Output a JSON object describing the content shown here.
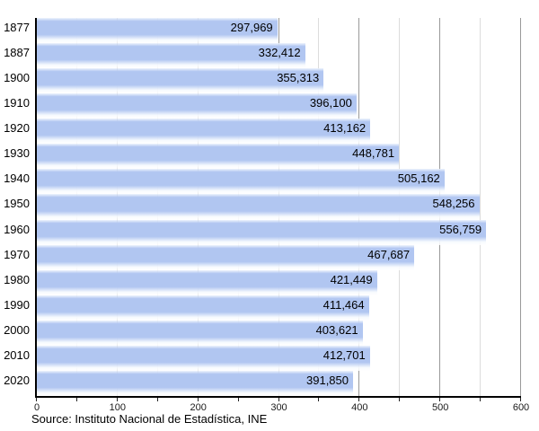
{
  "chart_data": {
    "type": "bar",
    "orientation": "horizontal",
    "title": "",
    "xlabel": "",
    "ylabel": "",
    "categories": [
      "1877",
      "1887",
      "1900",
      "1910",
      "1920",
      "1930",
      "1940",
      "1950",
      "1960",
      "1970",
      "1980",
      "1990",
      "2000",
      "2010",
      "2020"
    ],
    "values": [
      297969,
      332412,
      355313,
      396100,
      413162,
      448781,
      505162,
      548256,
      556759,
      467687,
      421449,
      411464,
      403621,
      412701,
      391850
    ],
    "value_labels": [
      "297,969",
      "332,412",
      "355,313",
      "396,100",
      "413,162",
      "448,781",
      "505,162",
      "548,256",
      "556,759",
      "467,687",
      "421,449",
      "411,464",
      "403,621",
      "412,701",
      "391,850"
    ],
    "xlim": [
      0,
      600
    ],
    "x_unit_divisor": 1000,
    "x_tick_labels": [
      "0",
      "100",
      "200",
      "300",
      "400",
      "500",
      "600"
    ],
    "x_major_tick_step": 100,
    "x_minor_tick_step": 50,
    "grid": true,
    "legend": false,
    "source": "Source: Instituto Nacional de Estadística, INE",
    "colors": {
      "bar": "#b1c6f1",
      "grid_major": "#999999",
      "grid_minor": "#dcdcdc",
      "axis": "#000000",
      "tick": "#222222",
      "text": "#000000"
    }
  }
}
